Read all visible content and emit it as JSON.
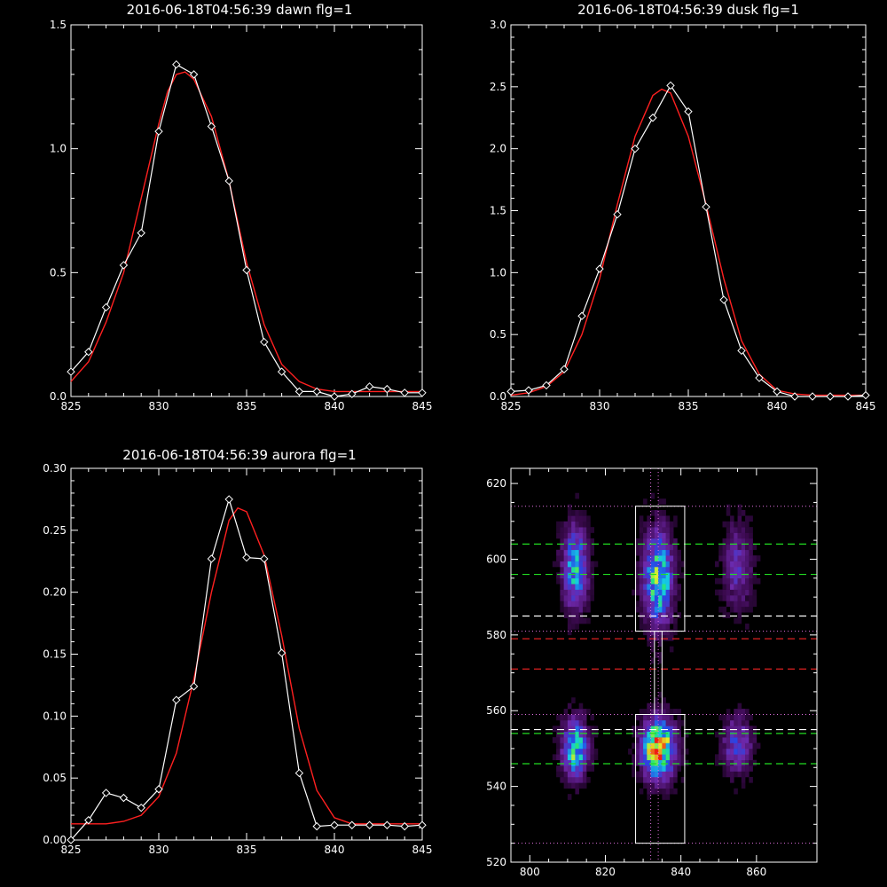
{
  "colors": {
    "background": "#000000",
    "axes": "#ffffff",
    "observed": "#ffffff",
    "fit": "#ff2020",
    "box": "#ffffff",
    "green_line": "#22dd22",
    "red_line": "#dd2020",
    "white_dash": "#ffffff",
    "dotted": "#e070e0"
  },
  "chart_data": [
    {
      "type": "line",
      "title": "2016-06-18T04:56:39 dawn flg=1",
      "xlim": [
        825,
        845
      ],
      "ylim": [
        0,
        1.5
      ],
      "xticks": [
        "825",
        "830",
        "835",
        "840",
        "845"
      ],
      "yticks": [
        "0.0",
        "0.5",
        "1.0",
        "1.5"
      ],
      "xtick_values": [
        825,
        830,
        835,
        840,
        845
      ],
      "ytick_values": [
        0,
        0.5,
        1.0,
        1.5
      ],
      "series": [
        {
          "type": "line",
          "markers": "diamond",
          "x": [
            825,
            826,
            827,
            828,
            829,
            830,
            831,
            832,
            833,
            834,
            835,
            836,
            837,
            838,
            839,
            840,
            841,
            842,
            843,
            844,
            845
          ],
          "y": [
            0.1,
            0.18,
            0.36,
            0.53,
            0.66,
            1.07,
            1.34,
            1.3,
            1.09,
            0.87,
            0.51,
            0.22,
            0.1,
            0.02,
            0.02,
            0.0,
            0.01,
            0.04,
            0.03,
            0.015,
            0.015
          ]
        },
        {
          "type": "line",
          "x": [
            825,
            826,
            827,
            828,
            829,
            830,
            830.5,
            831,
            831.5,
            832,
            833,
            834,
            835,
            836,
            837,
            838,
            839,
            840,
            842,
            845
          ],
          "y": [
            0.06,
            0.14,
            0.3,
            0.5,
            0.8,
            1.1,
            1.23,
            1.3,
            1.31,
            1.28,
            1.13,
            0.87,
            0.54,
            0.29,
            0.13,
            0.06,
            0.03,
            0.02,
            0.02,
            0.02
          ]
        }
      ]
    },
    {
      "type": "line",
      "title": "2016-06-18T04:56:39 dusk flg=1",
      "xlim": [
        825,
        845
      ],
      "ylim": [
        0,
        3.0
      ],
      "xticks": [
        "825",
        "830",
        "835",
        "840",
        "845"
      ],
      "yticks": [
        "0.0",
        "0.5",
        "1.0",
        "1.5",
        "2.0",
        "2.5",
        "3.0"
      ],
      "xtick_values": [
        825,
        830,
        835,
        840,
        845
      ],
      "ytick_values": [
        0,
        0.5,
        1.0,
        1.5,
        2.0,
        2.5,
        3.0
      ],
      "series": [
        {
          "type": "line",
          "markers": "diamond",
          "x": [
            825,
            826,
            827,
            828,
            829,
            830,
            831,
            832,
            833,
            834,
            835,
            836,
            837,
            838,
            839,
            840,
            841,
            842,
            843,
            844,
            845
          ],
          "y": [
            0.04,
            0.05,
            0.09,
            0.22,
            0.65,
            1.03,
            1.47,
            2.0,
            2.25,
            2.51,
            2.3,
            1.53,
            0.78,
            0.37,
            0.15,
            0.04,
            0.0,
            0.0,
            0.0,
            0.0,
            0.01
          ]
        },
        {
          "type": "line",
          "x": [
            825,
            826,
            827,
            828,
            829,
            830,
            831,
            832,
            833,
            833.5,
            834,
            835,
            836,
            837,
            838,
            839,
            840,
            841,
            842,
            845
          ],
          "y": [
            0.01,
            0.03,
            0.08,
            0.2,
            0.5,
            0.95,
            1.55,
            2.1,
            2.43,
            2.48,
            2.45,
            2.1,
            1.55,
            0.95,
            0.45,
            0.18,
            0.05,
            0.02,
            0.01,
            0.01
          ]
        }
      ]
    },
    {
      "type": "line",
      "title": "2016-06-18T04:56:39 aurora flg=1",
      "xlim": [
        825,
        845
      ],
      "ylim": [
        0,
        0.3
      ],
      "xticks": [
        "825",
        "830",
        "835",
        "840",
        "845"
      ],
      "yticks": [
        "0.00",
        "0.05",
        "0.10",
        "0.15",
        "0.20",
        "0.25",
        "0.30"
      ],
      "xtick_values": [
        825,
        830,
        835,
        840,
        845
      ],
      "ytick_values": [
        0,
        0.05,
        0.1,
        0.15,
        0.2,
        0.25,
        0.3
      ],
      "series": [
        {
          "type": "line",
          "markers": "diamond",
          "x": [
            825,
            826,
            827,
            828,
            829,
            830,
            831,
            832,
            833,
            834,
            835,
            836,
            837,
            838,
            839,
            840,
            841,
            842,
            843,
            844,
            845
          ],
          "y": [
            0.0,
            0.016,
            0.038,
            0.034,
            0.026,
            0.041,
            0.113,
            0.124,
            0.227,
            0.275,
            0.228,
            0.227,
            0.151,
            0.054,
            0.011,
            0.012,
            0.012,
            0.012,
            0.012,
            0.011,
            0.012
          ],
          "extra_segment": [
            [
              825,
              0.0
            ],
            [
              826,
              0.016
            ]
          ]
        },
        {
          "type": "line",
          "x": [
            825,
            827,
            828,
            829,
            830,
            831,
            832,
            833,
            834,
            834.5,
            835,
            836,
            837,
            838,
            839,
            840,
            841,
            845
          ],
          "y": [
            0.013,
            0.013,
            0.015,
            0.02,
            0.035,
            0.07,
            0.13,
            0.2,
            0.258,
            0.268,
            0.265,
            0.23,
            0.165,
            0.09,
            0.04,
            0.018,
            0.013,
            0.013
          ]
        }
      ]
    },
    {
      "type": "heatmap",
      "xlim": [
        795,
        876
      ],
      "ylim": [
        520,
        624
      ],
      "xticks": [
        "800",
        "820",
        "840",
        "860"
      ],
      "yticks": [
        "520",
        "540",
        "560",
        "580",
        "600",
        "620"
      ],
      "xtick_values": [
        800,
        820,
        840,
        860
      ],
      "ytick_values": [
        520,
        540,
        560,
        580,
        600,
        620
      ],
      "blobs": [
        {
          "cx": 812,
          "cy": 598,
          "sx": 2.2,
          "sy": 7,
          "amp": 0.55
        },
        {
          "cx": 812,
          "cy": 550,
          "sx": 2.2,
          "sy": 5,
          "amp": 0.65
        },
        {
          "cx": 834,
          "cy": 595,
          "sx": 2.5,
          "sy": 8,
          "amp": 0.7
        },
        {
          "cx": 834,
          "cy": 550,
          "sx": 2.8,
          "sy": 5,
          "amp": 1.0
        },
        {
          "cx": 855,
          "cy": 598,
          "sx": 2.5,
          "sy": 7,
          "amp": 0.28
        },
        {
          "cx": 855,
          "cy": 551,
          "sx": 2.5,
          "sy": 5,
          "amp": 0.35
        }
      ],
      "boxes": [
        {
          "x0": 828,
          "x1": 841,
          "y0": 581,
          "y1": 614
        },
        {
          "x0": 828,
          "x1": 841,
          "y0": 525,
          "y1": 559
        }
      ],
      "connector": {
        "x0": 833,
        "x1": 835,
        "y0": 559,
        "y1": 581
      },
      "green_dashed_y": [
        604,
        596,
        554,
        546
      ],
      "white_dashed_y": [
        585,
        555
      ],
      "red_dashed_y": [
        579,
        571
      ],
      "dotted_h_y": [
        614,
        581,
        559,
        525
      ],
      "dotted_v_x": [
        832,
        834
      ]
    }
  ]
}
